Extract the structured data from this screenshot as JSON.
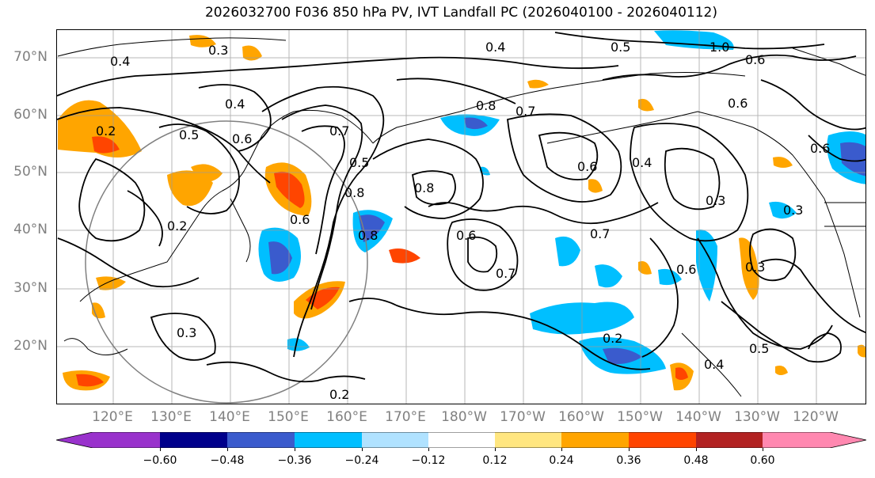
{
  "title": "2026032700 F036 850 hPa PV, IVT Landfall PC (2026040100 - 2026040112)",
  "latitude_labels": [
    "70°N",
    "60°N",
    "50°N",
    "40°N",
    "30°N",
    "20°N"
  ],
  "longitude_labels": [
    "120°E",
    "130°E",
    "140°E",
    "150°E",
    "160°E",
    "170°E",
    "180°W",
    "170°W",
    "160°W",
    "150°W",
    "140°W",
    "130°W",
    "120°W"
  ],
  "contour_labels": [
    "0.2",
    "0.3",
    "0.4",
    "0.5",
    "0.6",
    "0.7",
    "0.8",
    "0.8",
    "0.6",
    "0.4",
    "0.5",
    "0.7",
    "1.0",
    "0.6",
    "0.4",
    "0.3",
    "0.2",
    "0.6",
    "0.7",
    "0.8",
    "0.6",
    "0.5",
    "0.3",
    "0.2",
    "0.2",
    "0.6",
    "0.6",
    "0.3",
    "0.4",
    "0.5",
    "0.6",
    "0.7",
    "0.8",
    "0.3",
    "0.4"
  ],
  "colorbar": {
    "tick_labels": [
      "−0.60",
      "−0.48",
      "−0.36",
      "−0.24",
      "−0.12",
      "0.12",
      "0.24",
      "0.36",
      "0.48",
      "0.60"
    ],
    "colors": [
      "#9932cc",
      "#00008b",
      "#3a5bcd",
      "#00bfff",
      "#b0e2ff",
      "#ffffff",
      "#ffe680",
      "#ffa500",
      "#ff4500",
      "#b22222",
      "#ff88b0"
    ]
  }
}
